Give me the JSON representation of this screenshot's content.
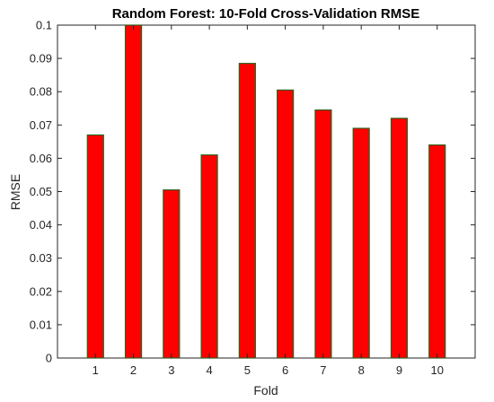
{
  "chart_data": {
    "type": "bar",
    "title": "Random Forest: 10-Fold Cross-Validation RMSE",
    "xlabel": "Fold",
    "ylabel": "RMSE",
    "categories": [
      "1",
      "2",
      "3",
      "4",
      "5",
      "6",
      "7",
      "8",
      "9",
      "10"
    ],
    "values": [
      0.067,
      0.1,
      0.0505,
      0.061,
      0.0885,
      0.0805,
      0.0745,
      0.069,
      0.072,
      0.064
    ],
    "ylim": [
      0,
      0.1
    ],
    "yticks": [
      "0",
      "0.01",
      "0.02",
      "0.03",
      "0.04",
      "0.05",
      "0.06",
      "0.07",
      "0.08",
      "0.09",
      "0.1"
    ],
    "grid": false,
    "colors": {
      "bar_fill": "#ff0000",
      "bar_edge": "#2f5f1f"
    }
  }
}
